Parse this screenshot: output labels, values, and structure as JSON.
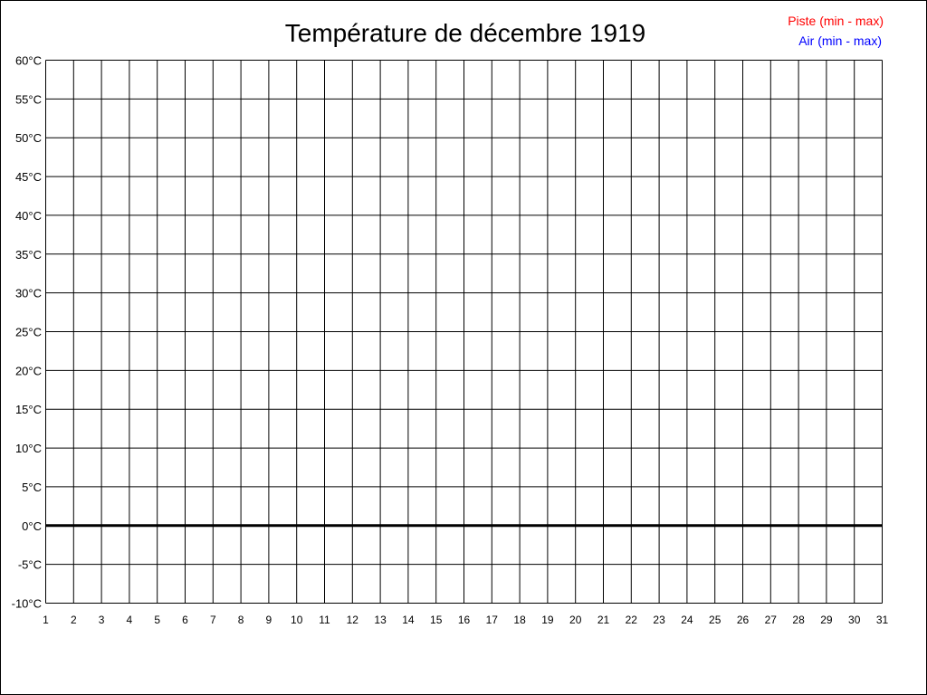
{
  "chart_data": {
    "type": "line",
    "title": "Température de décembre 1919",
    "legend": [
      {
        "label": "Piste (min - max)",
        "color": "#ff0000"
      },
      {
        "label": "Air (min - max)",
        "color": "#0000ff"
      }
    ],
    "legend_placement": "top-right",
    "x": [
      1,
      2,
      3,
      4,
      5,
      6,
      7,
      8,
      9,
      10,
      11,
      12,
      13,
      14,
      15,
      16,
      17,
      18,
      19,
      20,
      21,
      22,
      23,
      24,
      25,
      26,
      27,
      28,
      29,
      30,
      31
    ],
    "xlim": [
      1,
      31
    ],
    "ylim": [
      -10,
      60
    ],
    "y_ticks": [
      60,
      55,
      50,
      45,
      40,
      35,
      30,
      25,
      20,
      15,
      10,
      5,
      0,
      -5,
      -10
    ],
    "y_unit": "°C",
    "grid": true,
    "series": []
  }
}
